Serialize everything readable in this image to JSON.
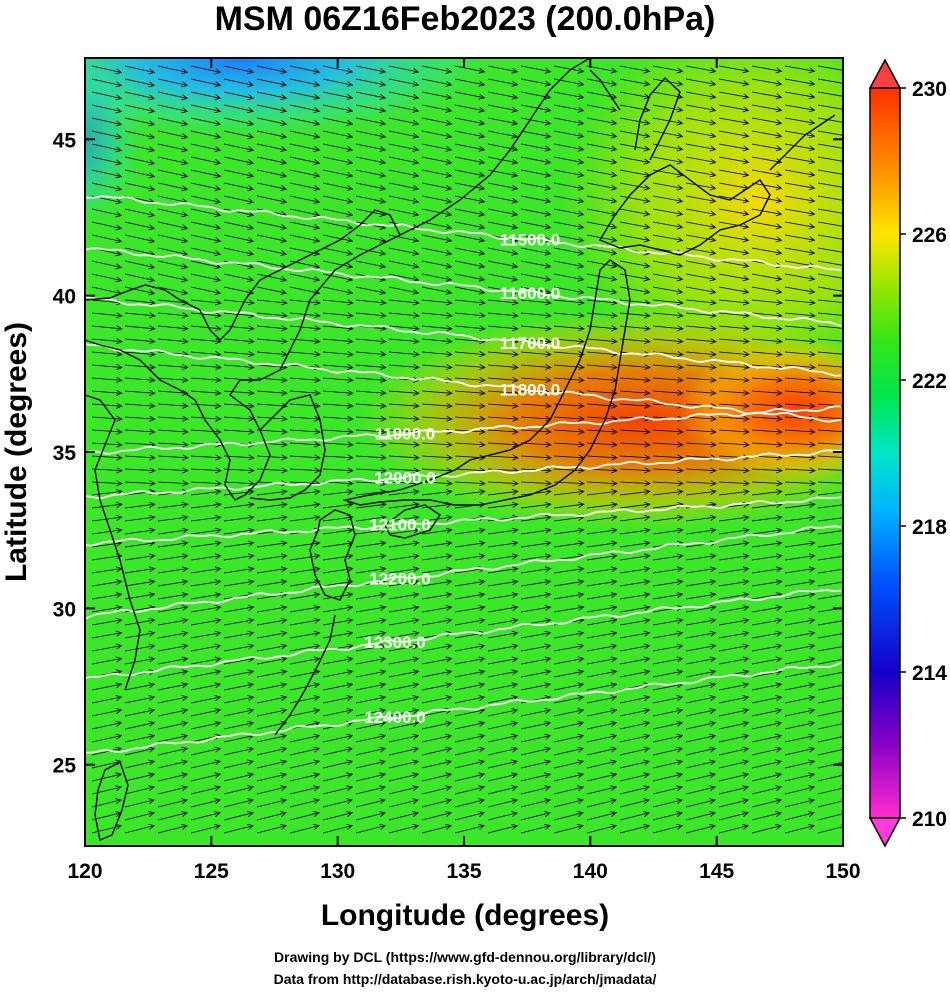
{
  "title": "MSM 06Z16Feb2023 (200.0hPa)",
  "xlabel": "Longitude (degrees)",
  "ylabel": "Latitude  (degrees)",
  "x_ticks": [
    "120",
    "125",
    "130",
    "135",
    "140",
    "145",
    "150"
  ],
  "y_ticks": [
    "25",
    "30",
    "35",
    "40",
    "45"
  ],
  "colorbar": {
    "ticks": [
      "230",
      "226",
      "222",
      "218",
      "214",
      "210"
    ],
    "min": 210,
    "max": 230,
    "colors": [
      "#ff2ccf",
      "#8a00c8",
      "#1400c8",
      "#0050ff",
      "#00b4ff",
      "#00e6c8",
      "#00e64a",
      "#3ce614",
      "#a8e600",
      "#ffe600",
      "#ff9600",
      "#ff4000",
      "#ff3030"
    ]
  },
  "contours": [
    {
      "label": "11500.0",
      "lat": 42.0
    },
    {
      "label": "11600.0",
      "lat": 40.3
    },
    {
      "label": "11700.0",
      "lat": 38.7
    },
    {
      "label": "11800.0",
      "lat": 37.2
    },
    {
      "label": "11900.0",
      "lat": 35.7
    },
    {
      "label": "12000.0",
      "lat": 34.3
    },
    {
      "label": "12100.0",
      "lat": 32.8
    },
    {
      "label": "12200.0",
      "lat": 31.2
    },
    {
      "label": "12300.0",
      "lat": 29.2
    },
    {
      "label": "12400.0",
      "lat": 26.8
    }
  ],
  "credits": {
    "line1": "Drawing by DCL (https://www.gfd-dennou.org/library/dcl/)",
    "line2": "Data from http://database.rish.kyoto-u.ac.jp/arch/jmadata/"
  },
  "colors": {
    "contour": "#ffffff",
    "arrow": "#000000",
    "coast": "#000000"
  },
  "chart_data": {
    "type": "heatmap",
    "title": "MSM 06Z16Feb2023 (200.0hPa)",
    "xlabel": "Longitude (degrees)",
    "ylabel": "Latitude  (degrees)",
    "xlim": [
      120,
      150
    ],
    "ylim": [
      22.4,
      47.6
    ],
    "colorbar_range": [
      210,
      230
    ],
    "colorbar_ticks": [
      210,
      214,
      218,
      222,
      226,
      230
    ],
    "contour_levels": [
      11500,
      11600,
      11700,
      11800,
      11900,
      12000,
      12100,
      12200,
      12300,
      12400
    ]
  }
}
